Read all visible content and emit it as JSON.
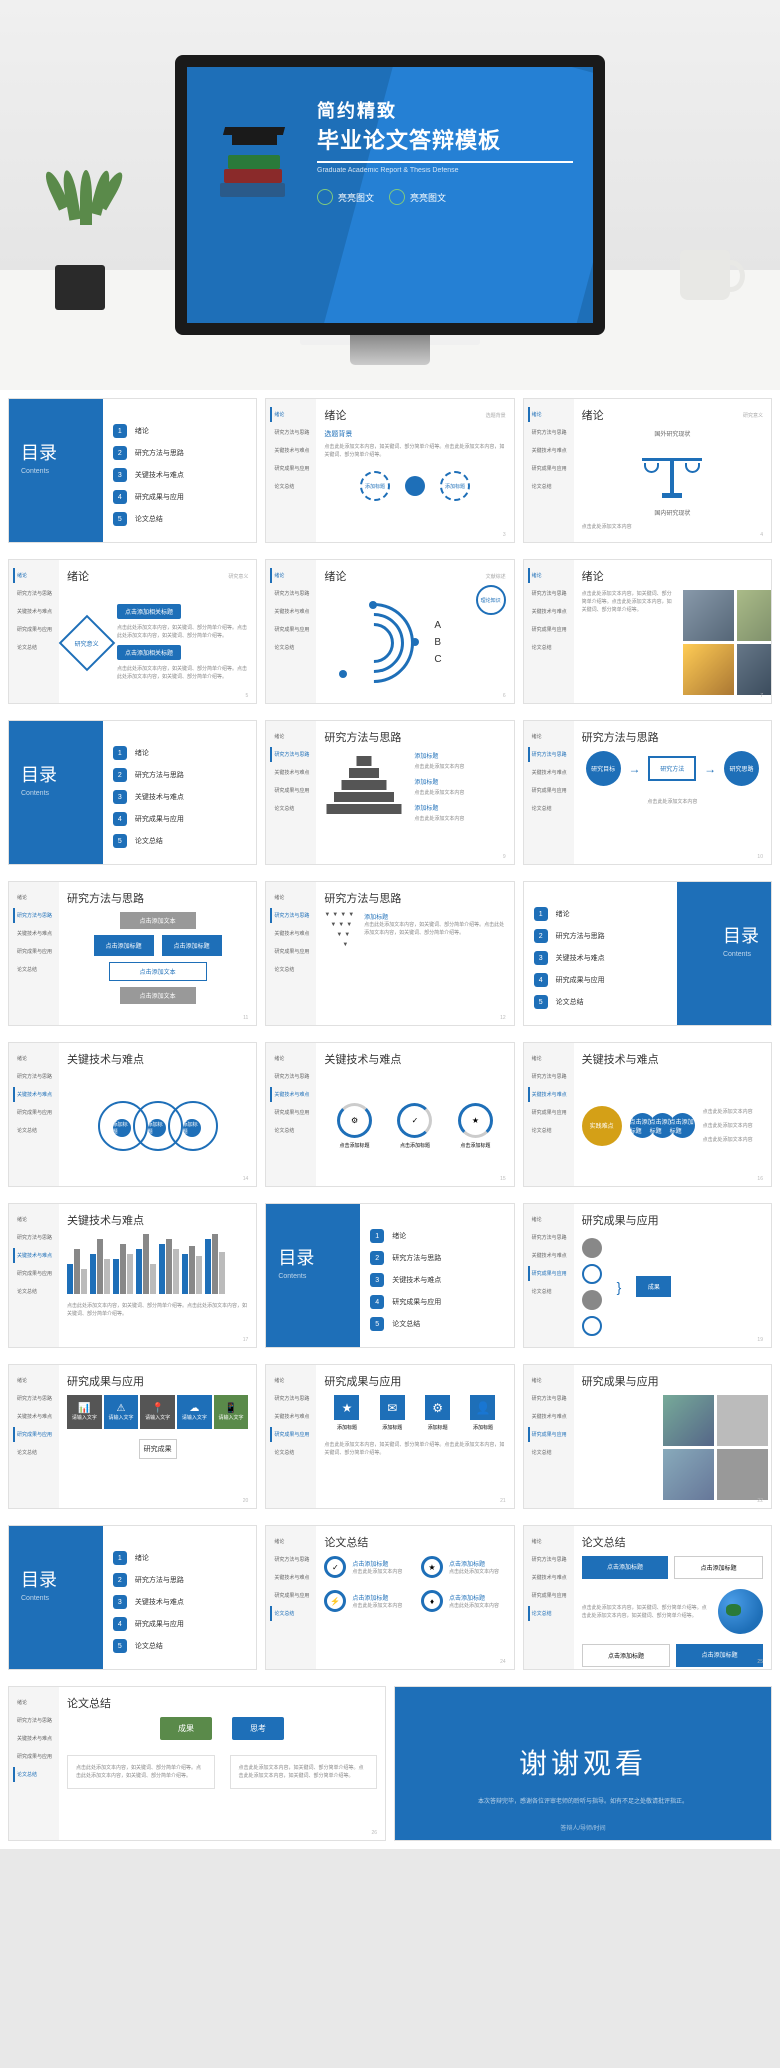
{
  "hero": {
    "title_line1": "简约精致",
    "title_line2": "毕业论文答辩模板",
    "subtitle_en": "Graduate Academic Report & Thesis Defense",
    "badge1": "亮亮图文",
    "badge2": "亮亮图文"
  },
  "colors": {
    "primary": "#1e6fb8",
    "primary_light": "#2580d4",
    "gray": "#888888",
    "bg": "#e8e8e8"
  },
  "toc": {
    "title_cn": "目录",
    "title_en": "Contents",
    "items": [
      {
        "num": "1",
        "text": "绪论"
      },
      {
        "num": "2",
        "text": "研究方法与思路"
      },
      {
        "num": "3",
        "text": "关键技术与难点"
      },
      {
        "num": "4",
        "text": "研究成果与应用"
      },
      {
        "num": "5",
        "text": "论文总结"
      }
    ]
  },
  "sidebar_items": [
    "绪论",
    "研究方法与思路",
    "关键技术与难点",
    "研究成果与应用",
    "论文总结"
  ],
  "sections": {
    "intro": {
      "title": "绪论",
      "crumb1": "选题背景",
      "crumb2": "研究意义",
      "crumb3": "文献综述"
    },
    "method": {
      "title": "研究方法与思路"
    },
    "tech": {
      "title": "关键技术与难点"
    },
    "result": {
      "title": "研究成果与应用"
    },
    "summary": {
      "title": "论文总结"
    }
  },
  "labels": {
    "select_bg": "选题背景",
    "research_mean": "研究意义",
    "domestic": "国内研究现状",
    "foreign": "国外研究现状",
    "add_title": "添加标题",
    "click_add": "点击添加标题",
    "click_add_text": "点击添加文本",
    "click_add_rel": "点击添加相关标题",
    "input_text": "请输入文字",
    "research_target": "研究目标",
    "research_method": "研究方法",
    "research_route": "研究思路",
    "key_tech": "关键技术",
    "hard_point": "实践难点",
    "research_result": "研究成果",
    "result": "成果",
    "thinking": "思考",
    "knowledge": "理论知识",
    "summary": "总结归纳"
  },
  "arc_labels": {
    "a": "A",
    "b": "B",
    "c": "C"
  },
  "lorem": "点击此处添加文本内容，如关键词、部分简单介绍等。点击此处添加文本内容，如关键词、部分简单介绍等。",
  "lorem_short": "点击此处添加文本内容",
  "thanks": {
    "title": "谢谢观看",
    "text": "本次答辩完毕，感谢各位评审老师的聆听与指导。如有不足之处敬请批评指正。",
    "footer": "答辩人/导师/时间"
  },
  "bar_data": [
    [
      30,
      45,
      25
    ],
    [
      40,
      55,
      35
    ],
    [
      35,
      50,
      40
    ],
    [
      45,
      60,
      30
    ],
    [
      50,
      55,
      45
    ],
    [
      40,
      48,
      38
    ],
    [
      55,
      60,
      42
    ]
  ]
}
